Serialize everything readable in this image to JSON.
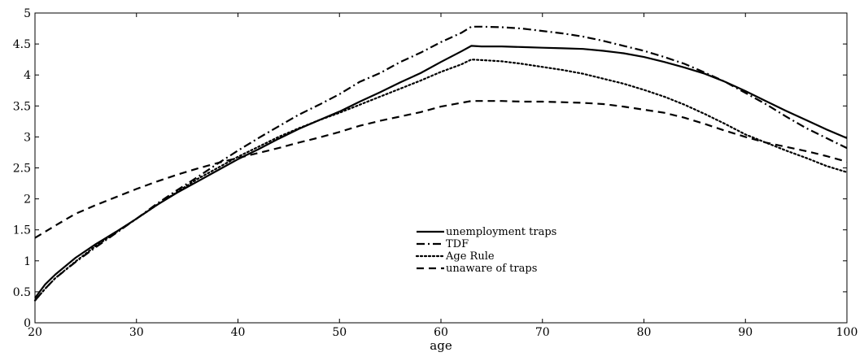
{
  "chart_data": {
    "type": "line",
    "title": "",
    "xlabel": "age",
    "ylabel": "",
    "xlim": [
      20,
      100
    ],
    "ylim": [
      0,
      5
    ],
    "x_ticks": [
      20,
      30,
      40,
      50,
      60,
      70,
      80,
      90,
      100
    ],
    "y_ticks": [
      0,
      0.5,
      1,
      1.5,
      2,
      2.5,
      3,
      3.5,
      4,
      4.5,
      5
    ],
    "y_tick_labels": [
      "0",
      "0.5",
      "1",
      "1.5",
      "2",
      "2.5",
      "3",
      "3.5",
      "4",
      "4.5",
      "5"
    ],
    "grid": false,
    "legend_placement": "center",
    "series": [
      {
        "name": "unemployment traps",
        "style": "solid",
        "x": [
          20,
          21,
          22,
          24,
          26,
          28,
          30,
          32,
          34,
          36,
          38,
          40,
          42,
          44,
          46,
          48,
          50,
          52,
          54,
          56,
          58,
          60,
          62,
          63,
          64,
          66,
          68,
          70,
          72,
          74,
          76,
          78,
          80,
          82,
          84,
          86,
          88,
          90,
          92,
          94,
          96,
          98,
          100
        ],
        "y": [
          0.4,
          0.62,
          0.78,
          1.05,
          1.27,
          1.47,
          1.68,
          1.9,
          2.1,
          2.28,
          2.46,
          2.64,
          2.8,
          2.97,
          3.13,
          3.27,
          3.41,
          3.57,
          3.72,
          3.88,
          4.03,
          4.21,
          4.38,
          4.47,
          4.46,
          4.46,
          4.45,
          4.44,
          4.43,
          4.42,
          4.39,
          4.35,
          4.29,
          4.21,
          4.12,
          4.02,
          3.89,
          3.74,
          3.58,
          3.42,
          3.27,
          3.12,
          2.98
        ]
      },
      {
        "name": "TDF",
        "style": "dashdot",
        "x": [
          20,
          21,
          22,
          24,
          26,
          28,
          30,
          32,
          34,
          36,
          38,
          40,
          42,
          44,
          46,
          48,
          50,
          52,
          54,
          56,
          58,
          60,
          62,
          63,
          64,
          66,
          68,
          70,
          72,
          74,
          76,
          78,
          80,
          82,
          84,
          86,
          88,
          90,
          92,
          94,
          96,
          98,
          100
        ],
        "y": [
          0.36,
          0.55,
          0.72,
          0.98,
          1.22,
          1.45,
          1.68,
          1.92,
          2.14,
          2.35,
          2.57,
          2.78,
          2.98,
          3.17,
          3.36,
          3.52,
          3.69,
          3.89,
          4.03,
          4.21,
          4.36,
          4.53,
          4.68,
          4.78,
          4.78,
          4.77,
          4.75,
          4.71,
          4.67,
          4.62,
          4.55,
          4.47,
          4.39,
          4.29,
          4.18,
          4.04,
          3.89,
          3.71,
          3.53,
          3.33,
          3.14,
          2.98,
          2.82
        ]
      },
      {
        "name": "Age Rule",
        "style": "dotted",
        "x": [
          20,
          21,
          22,
          24,
          26,
          28,
          30,
          32,
          34,
          36,
          38,
          40,
          42,
          44,
          46,
          48,
          50,
          52,
          54,
          56,
          58,
          60,
          62,
          63,
          64,
          66,
          68,
          70,
          72,
          74,
          76,
          78,
          80,
          82,
          84,
          86,
          88,
          90,
          92,
          94,
          96,
          98,
          100
        ],
        "y": [
          0.36,
          0.55,
          0.72,
          0.99,
          1.24,
          1.46,
          1.68,
          1.9,
          2.11,
          2.32,
          2.5,
          2.68,
          2.84,
          3.0,
          3.14,
          3.27,
          3.39,
          3.52,
          3.65,
          3.78,
          3.91,
          4.05,
          4.17,
          4.25,
          4.24,
          4.22,
          4.18,
          4.13,
          4.08,
          4.02,
          3.94,
          3.86,
          3.76,
          3.65,
          3.52,
          3.37,
          3.21,
          3.04,
          2.91,
          2.78,
          2.66,
          2.53,
          2.43
        ]
      },
      {
        "name": "unaware of traps",
        "style": "dashed",
        "x": [
          20,
          22,
          24,
          26,
          28,
          30,
          32,
          34,
          36,
          38,
          40,
          42,
          44,
          46,
          48,
          50,
          52,
          54,
          56,
          58,
          60,
          62,
          63,
          64,
          66,
          68,
          70,
          72,
          74,
          76,
          78,
          80,
          82,
          84,
          86,
          88,
          90,
          92,
          94,
          96,
          98,
          100
        ],
        "y": [
          1.37,
          1.57,
          1.76,
          1.9,
          2.03,
          2.16,
          2.28,
          2.39,
          2.49,
          2.58,
          2.66,
          2.74,
          2.82,
          2.91,
          2.99,
          3.08,
          3.18,
          3.26,
          3.33,
          3.4,
          3.49,
          3.55,
          3.58,
          3.58,
          3.58,
          3.57,
          3.57,
          3.56,
          3.55,
          3.53,
          3.49,
          3.44,
          3.39,
          3.31,
          3.21,
          3.1,
          3.0,
          2.91,
          2.84,
          2.77,
          2.69,
          2.6
        ]
      }
    ]
  }
}
